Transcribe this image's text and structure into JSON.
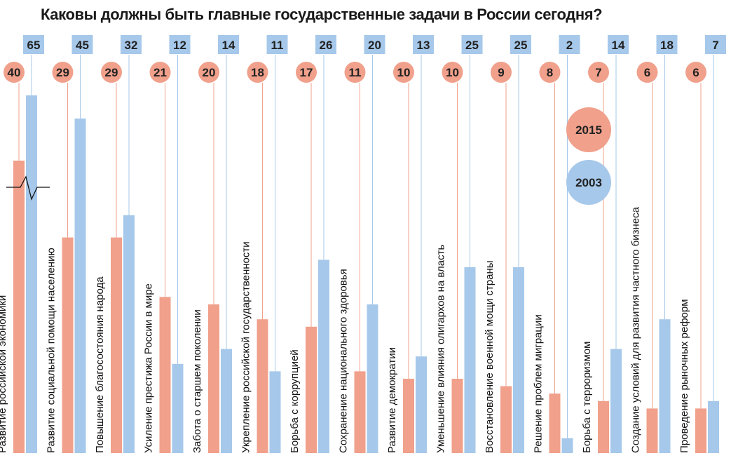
{
  "chart_data": {
    "type": "bar",
    "title": "Каковы должны быть главные государственные задачи в России сегодня?",
    "categories": [
      "Развитие российской экономики",
      "Развитие социальной помощи населению",
      "Повышение благосостояния народа",
      "Усиление престижа России в мире",
      "Забота о старшем поколении",
      "Укрепление российской государственности",
      "Борьба с коррупцией",
      "Сохранение национального здоровья",
      "Развитие демократии",
      "Уменьшение влияния олигархов на власть",
      "Восстановление военной мощи страны",
      "Решение проблем миграции",
      "Борьба с терроризмом",
      "Создание условий для развития частного бизнеса",
      "Проведение рыночных реформ"
    ],
    "series": [
      {
        "name": "2015",
        "values": [
          40,
          29,
          29,
          21,
          20,
          18,
          17,
          11,
          10,
          10,
          9,
          8,
          7,
          6,
          6
        ]
      },
      {
        "name": "2003",
        "values": [
          65,
          45,
          32,
          12,
          14,
          11,
          26,
          20,
          13,
          25,
          25,
          2,
          14,
          18,
          7
        ]
      }
    ],
    "colors": {
      "2015": "#f0a08b",
      "2003": "#a6c8ea"
    },
    "axis_break": {
      "series": "2015",
      "category": "Развитие российской экономики"
    },
    "legend_position": "right"
  }
}
